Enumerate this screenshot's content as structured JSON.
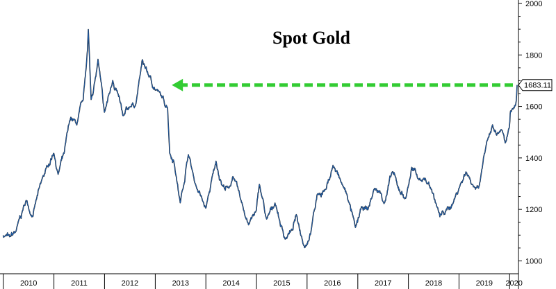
{
  "chart_data": {
    "type": "line",
    "title": "Spot Gold",
    "xlabel": "",
    "ylabel": "",
    "x_categories": [
      "2010",
      "2011",
      "2012",
      "2013",
      "2014",
      "2015",
      "2016",
      "2017",
      "2018",
      "2019",
      "2020"
    ],
    "yticks": [
      "1000",
      "1200",
      "1400",
      "1600",
      "1800",
      "2000"
    ],
    "ylim": [
      950,
      2000
    ],
    "grid": false,
    "legend": "none",
    "last_value_label": "1683.11",
    "series": [
      {
        "name": "",
        "color": "#1f5fae",
        "x": [
          "2009-12-31",
          "2010-02-15",
          "2010-03-31",
          "2010-06-15",
          "2010-07-31",
          "2010-09-30",
          "2010-11-15",
          "2010-12-31",
          "2011-01-31",
          "2011-03-15",
          "2011-04-30",
          "2011-06-15",
          "2011-07-31",
          "2011-08-31",
          "2011-09-06",
          "2011-09-26",
          "2011-10-31",
          "2011-11-15",
          "2011-12-31",
          "2012-02-29",
          "2012-03-31",
          "2012-05-15",
          "2012-06-30",
          "2012-08-15",
          "2012-09-30",
          "2012-10-15",
          "2012-11-15",
          "2012-12-31",
          "2013-02-15",
          "2013-03-31",
          "2013-04-15",
          "2013-05-15",
          "2013-06-30",
          "2013-08-28",
          "2013-10-15",
          "2013-12-31",
          "2014-03-15",
          "2014-04-30",
          "2014-06-15",
          "2014-07-15",
          "2014-09-15",
          "2014-11-05",
          "2014-12-31",
          "2015-01-22",
          "2015-03-15",
          "2015-05-15",
          "2015-07-24",
          "2015-09-15",
          "2015-10-15",
          "2015-12-17",
          "2016-01-31",
          "2016-03-15",
          "2016-05-15",
          "2016-07-06",
          "2016-08-31",
          "2016-10-15",
          "2016-12-15",
          "2017-01-31",
          "2017-03-15",
          "2017-04-30",
          "2017-06-15",
          "2017-07-15",
          "2017-09-08",
          "2017-10-15",
          "2017-12-12",
          "2018-01-25",
          "2018-03-15",
          "2018-04-30",
          "2018-06-15",
          "2018-08-16",
          "2018-09-30",
          "2018-11-15",
          "2018-12-31",
          "2019-02-20",
          "2019-04-30",
          "2019-05-31",
          "2019-06-30",
          "2019-08-31",
          "2019-09-30",
          "2019-10-31",
          "2019-11-30",
          "2019-12-31",
          "2020-01-08",
          "2020-02-15",
          "2020-02-24"
        ],
        "values": [
          1096,
          1095,
          1113,
          1237,
          1170,
          1307,
          1369,
          1421,
          1334,
          1420,
          1556,
          1530,
          1628,
          1820,
          1895,
          1630,
          1720,
          1780,
          1575,
          1700,
          1660,
          1560,
          1600,
          1610,
          1780,
          1760,
          1720,
          1665,
          1640,
          1595,
          1420,
          1390,
          1225,
          1415,
          1300,
          1204,
          1385,
          1290,
          1280,
          1330,
          1230,
          1142,
          1195,
          1300,
          1160,
          1225,
          1085,
          1120,
          1180,
          1050,
          1118,
          1260,
          1275,
          1370,
          1310,
          1255,
          1130,
          1210,
          1200,
          1280,
          1265,
          1225,
          1350,
          1290,
          1240,
          1360,
          1320,
          1318,
          1280,
          1175,
          1195,
          1220,
          1280,
          1345,
          1280,
          1300,
          1410,
          1525,
          1485,
          1510,
          1455,
          1520,
          1580,
          1610,
          1683
        ]
      }
    ],
    "annotation": {
      "type": "dashed-arrow",
      "from": "2020-02-24",
      "to": "2013-03-31",
      "y": 1683,
      "color": "#33cc33"
    }
  }
}
